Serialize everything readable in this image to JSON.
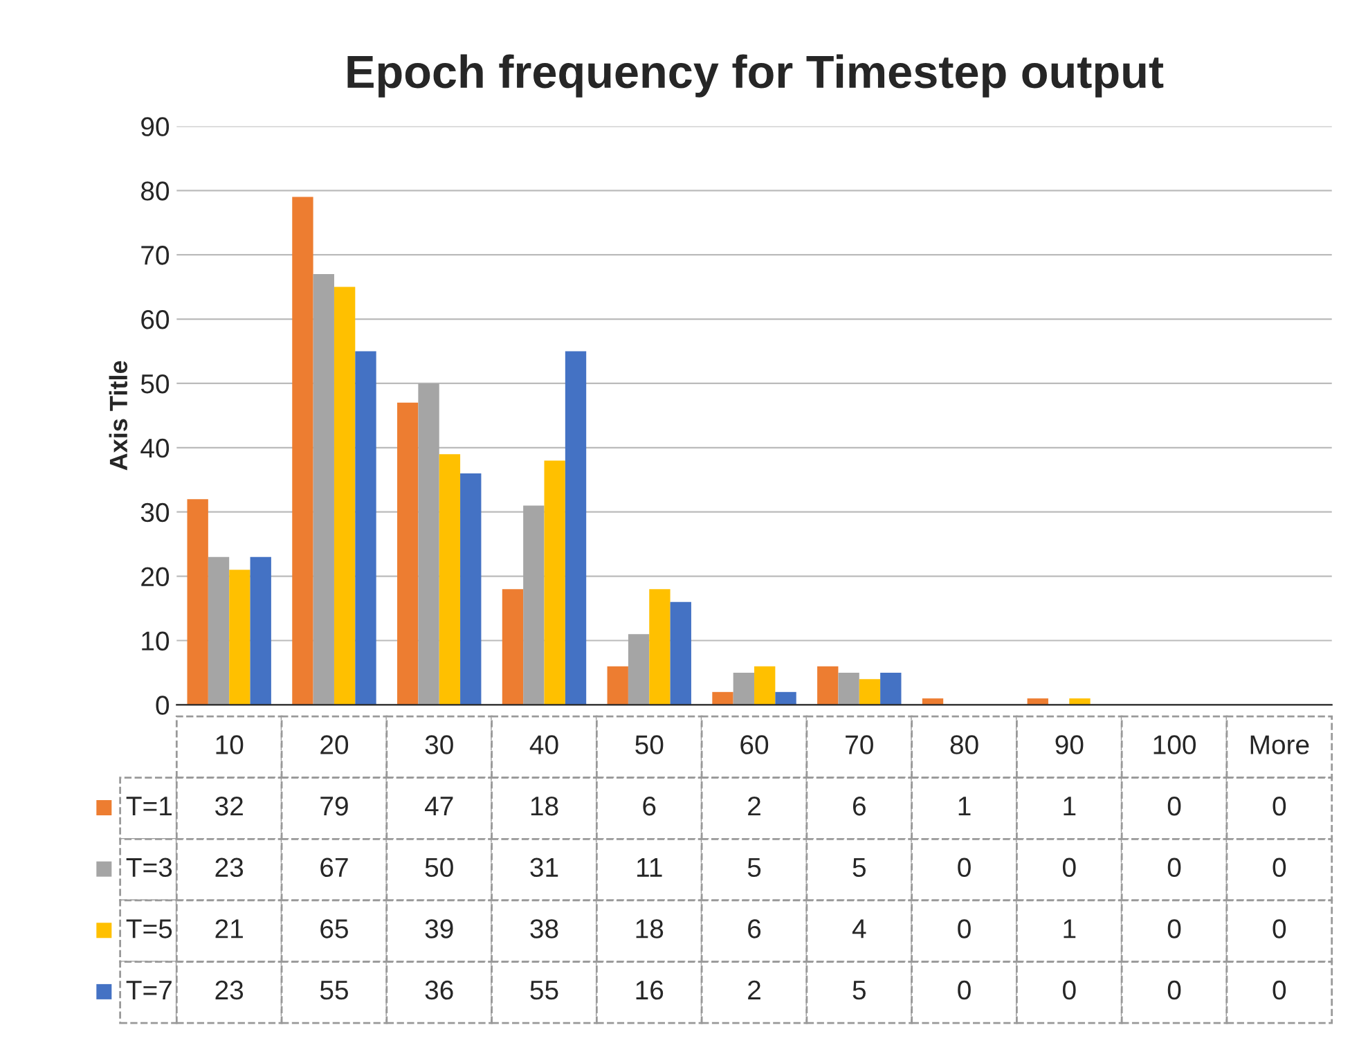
{
  "chart_data": {
    "type": "bar",
    "title": "Epoch frequency for Timestep output",
    "ylabel": "Axis Title",
    "categories": [
      "10",
      "20",
      "30",
      "40",
      "50",
      "60",
      "70",
      "80",
      "90",
      "100",
      "More"
    ],
    "series": [
      {
        "name": "T=1",
        "color": "#ed7d31",
        "values": [
          32,
          79,
          47,
          18,
          6,
          2,
          6,
          1,
          1,
          0,
          0
        ]
      },
      {
        "name": "T=3",
        "color": "#a5a5a5",
        "values": [
          23,
          67,
          50,
          31,
          11,
          5,
          5,
          0,
          0,
          0,
          0
        ]
      },
      {
        "name": "T=5",
        "color": "#ffc000",
        "values": [
          21,
          65,
          39,
          38,
          18,
          6,
          4,
          0,
          1,
          0,
          0
        ]
      },
      {
        "name": "T=7",
        "color": "#4472c4",
        "values": [
          23,
          55,
          36,
          55,
          16,
          2,
          5,
          0,
          0,
          0,
          0
        ]
      }
    ],
    "ylim": [
      0,
      90
    ],
    "yticks": [
      0,
      10,
      20,
      30,
      40,
      50,
      60,
      70,
      80,
      90
    ],
    "grid": "y",
    "legend": "bottom",
    "data_labels": true
  }
}
